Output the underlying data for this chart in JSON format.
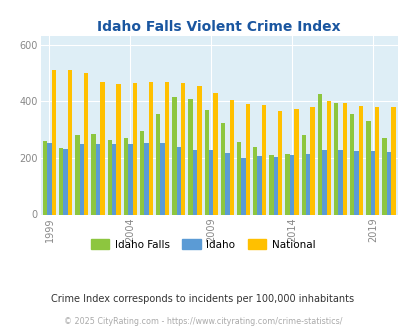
{
  "title": "Idaho Falls Violent Crime Index",
  "years": [
    1999,
    2000,
    2001,
    2002,
    2003,
    2004,
    2005,
    2006,
    2007,
    2008,
    2009,
    2010,
    2011,
    2012,
    2013,
    2014,
    2015,
    2016,
    2017,
    2018,
    2019,
    2020
  ],
  "idaho_falls": [
    260,
    235,
    280,
    285,
    265,
    270,
    295,
    355,
    415,
    410,
    370,
    325,
    255,
    238,
    210,
    215,
    280,
    425,
    395,
    355,
    332,
    270
  ],
  "idaho": [
    253,
    232,
    250,
    248,
    248,
    250,
    252,
    252,
    240,
    228,
    228,
    218,
    200,
    208,
    204,
    211,
    214,
    228,
    228,
    226,
    224,
    220
  ],
  "national": [
    510,
    510,
    500,
    470,
    460,
    465,
    470,
    470,
    465,
    455,
    430,
    405,
    390,
    388,
    365,
    373,
    380,
    400,
    395,
    385,
    380,
    379
  ],
  "colors": {
    "idaho_falls": "#8dc63f",
    "idaho": "#5b9bd5",
    "national": "#ffc000"
  },
  "ylabel_ticks": [
    0,
    200,
    400,
    600
  ],
  "ylim": [
    0,
    630
  ],
  "xlabel_ticks": [
    1999,
    2004,
    2009,
    2014,
    2019
  ],
  "plot_bg": "#deeef6",
  "title_color": "#1a56a0",
  "subtitle": "Crime Index corresponds to incidents per 100,000 inhabitants",
  "footer": "© 2025 CityRating.com - https://www.cityrating.com/crime-statistics/",
  "bar_width": 0.27,
  "legend_labels": [
    "Idaho Falls",
    "Idaho",
    "National"
  ]
}
